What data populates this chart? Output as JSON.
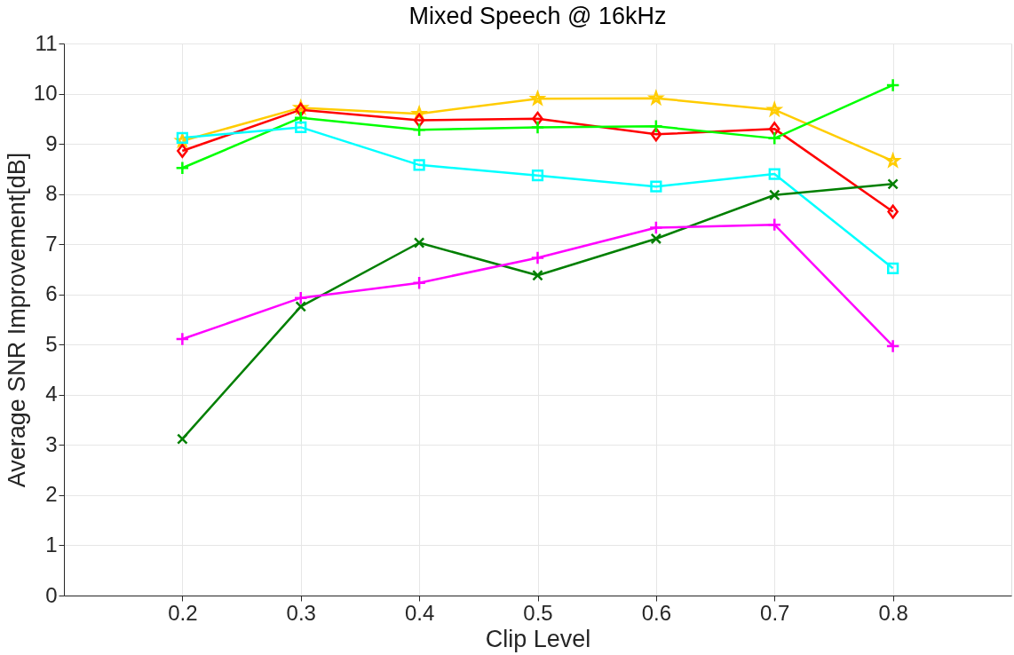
{
  "chart_data": {
    "type": "line",
    "title": "Mixed Speech @ 16kHz",
    "xlabel": "Clip Level",
    "ylabel": "Average SNR Improvement[dB]",
    "x": [
      0.2,
      0.3,
      0.4,
      0.5,
      0.6,
      0.7,
      0.8
    ],
    "series": [
      {
        "color": "#ffcc00",
        "marker": "star",
        "values": [
          9.06,
          9.72,
          9.6,
          9.9,
          9.91,
          9.68,
          8.66
        ]
      },
      {
        "color": "#ff0000",
        "marker": "diamond",
        "values": [
          8.86,
          9.68,
          9.47,
          9.5,
          9.19,
          9.3,
          7.65
        ]
      },
      {
        "color": "#00ff00",
        "marker": "cross",
        "values": [
          8.52,
          9.52,
          9.28,
          9.33,
          9.35,
          9.11,
          10.17
        ]
      },
      {
        "color": "#00ffff",
        "marker": "square",
        "values": [
          9.12,
          9.33,
          8.58,
          8.37,
          8.15,
          8.4,
          6.52
        ]
      },
      {
        "color": "#007f00",
        "marker": "x",
        "values": [
          3.12,
          5.76,
          7.03,
          6.38,
          7.11,
          7.98,
          8.2
        ]
      },
      {
        "color": "#ff00ff",
        "marker": "cross",
        "values": [
          5.11,
          5.93,
          6.23,
          6.73,
          7.33,
          7.39,
          4.97
        ]
      }
    ],
    "xlim": [
      0.1,
      0.9
    ],
    "xticks": [
      0.2,
      0.3,
      0.4,
      0.5,
      0.6,
      0.7,
      0.8
    ],
    "ylim": [
      0,
      11
    ],
    "yticks": [
      0,
      1,
      2,
      3,
      4,
      5,
      6,
      7,
      8,
      9,
      10,
      11
    ],
    "grid": true,
    "legend": false,
    "line_style": "solid"
  }
}
